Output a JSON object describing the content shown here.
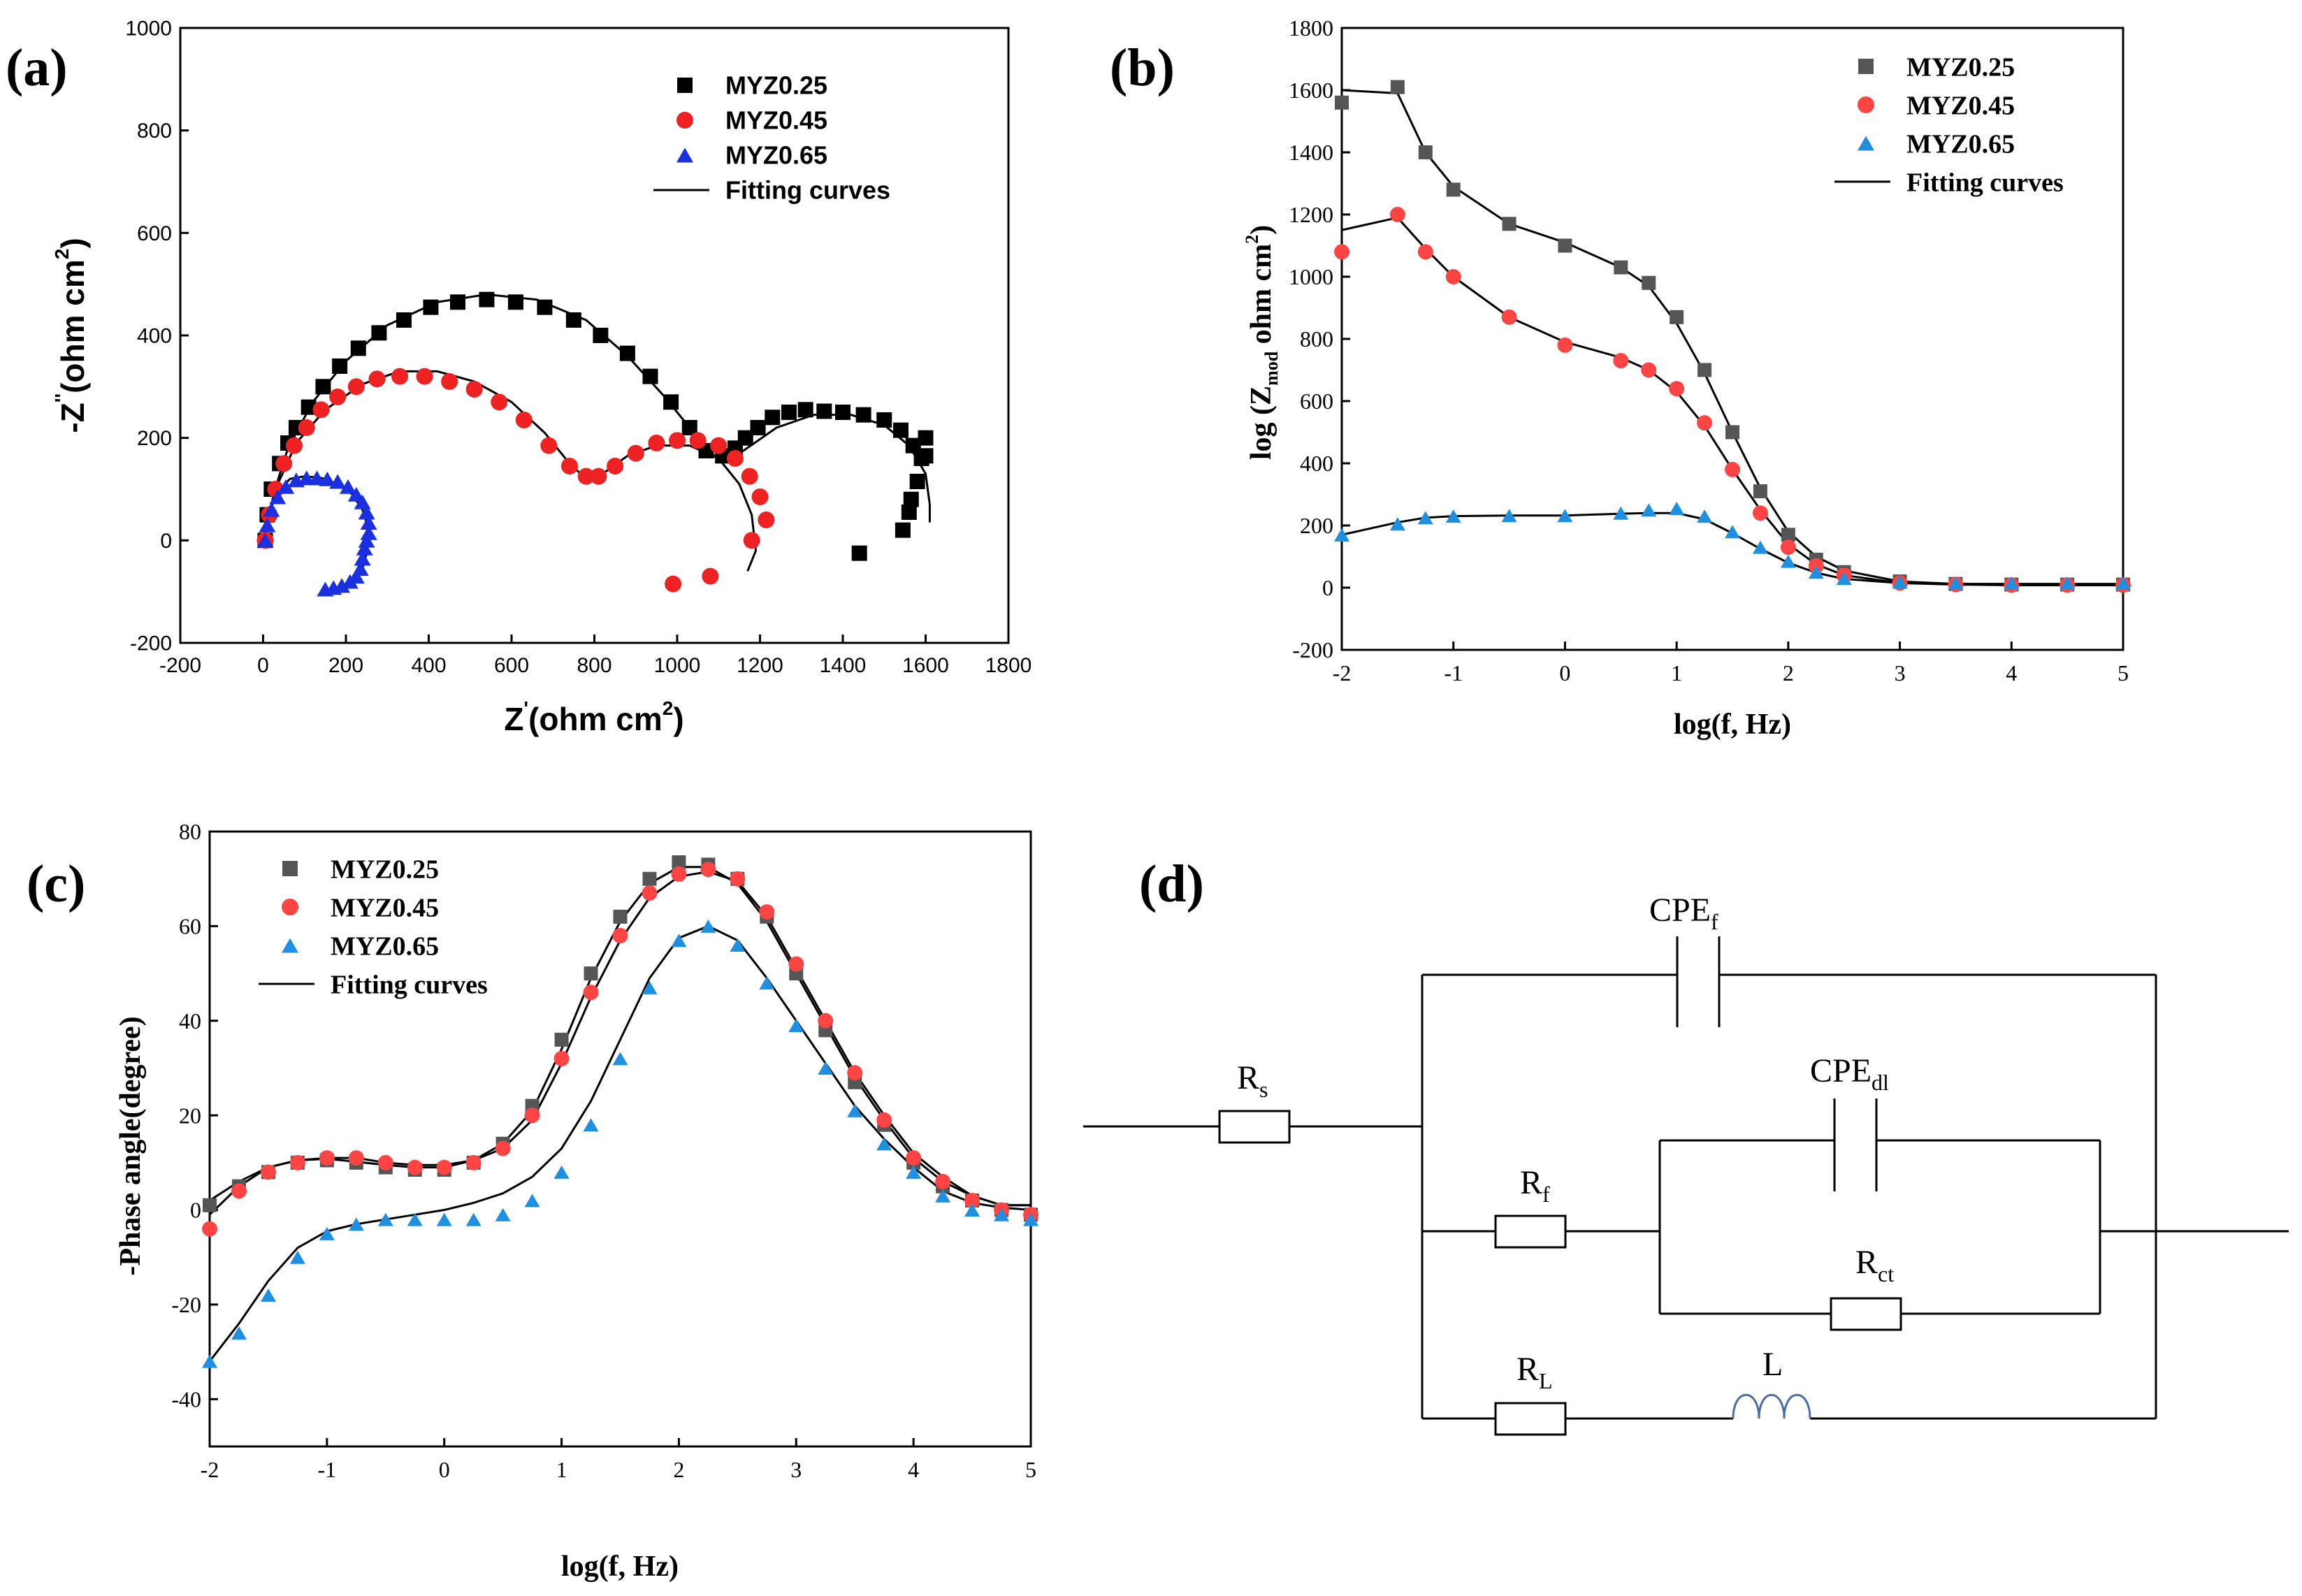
{
  "panel_labels": {
    "a": "(a)",
    "b": "(b)",
    "c": "(c)",
    "d": "(d)"
  },
  "colors": {
    "s1": "#000000",
    "s2": "#ee2222",
    "s3": "#1a2fe0",
    "s1b": "#555555",
    "s2b": "#ff4444",
    "s3b": "#1f8fe0",
    "fit": "#000000",
    "inductor": "#4a6fa5"
  },
  "chart_data": [
    {
      "panel": "a",
      "type": "scatter",
      "xlabel": "Z'(ohm cm²)",
      "ylabel": "-Z''(ohm cm²)",
      "xlim": [
        -200,
        1800
      ],
      "ylim": [
        -200,
        1000
      ],
      "xticks": [
        -200,
        0,
        200,
        400,
        600,
        800,
        1000,
        1200,
        1400,
        1600,
        1800
      ],
      "yticks": [
        -200,
        0,
        200,
        400,
        600,
        800,
        1000
      ],
      "legend_position": "top-right",
      "series": [
        {
          "name": "MYZ0.25",
          "marker": "square",
          "color": "#000000",
          "x": [
            5,
            10,
            20,
            40,
            60,
            80,
            110,
            145,
            185,
            230,
            280,
            340,
            405,
            470,
            540,
            610,
            680,
            750,
            815,
            880,
            935,
            985,
            1030,
            1070,
            1110,
            1140,
            1165,
            1195,
            1230,
            1270,
            1310,
            1355,
            1400,
            1450,
            1500,
            1540,
            1570,
            1590,
            1600,
            1600,
            1580,
            1565,
            1560,
            1545,
            1440
          ],
          "y": [
            0,
            50,
            100,
            150,
            190,
            220,
            260,
            300,
            340,
            375,
            405,
            430,
            455,
            465,
            470,
            465,
            455,
            430,
            400,
            365,
            320,
            270,
            220,
            175,
            165,
            180,
            200,
            220,
            240,
            250,
            255,
            252,
            250,
            245,
            235,
            215,
            185,
            160,
            200,
            165,
            115,
            80,
            55,
            20,
            -25
          ]
        },
        {
          "name": "MYZ0.45",
          "marker": "circle",
          "color": "#ee2222",
          "x": [
            5,
            15,
            30,
            50,
            75,
            105,
            140,
            180,
            225,
            275,
            330,
            390,
            450,
            510,
            570,
            630,
            690,
            740,
            780,
            810,
            850,
            900,
            950,
            1000,
            1050,
            1100,
            1140,
            1175,
            1200,
            1215,
            1180,
            1080,
            990
          ],
          "y": [
            0,
            50,
            100,
            150,
            185,
            220,
            255,
            280,
            300,
            315,
            320,
            320,
            310,
            295,
            270,
            235,
            185,
            145,
            125,
            125,
            145,
            170,
            190,
            195,
            195,
            185,
            160,
            125,
            85,
            40,
            0,
            -70,
            -85
          ]
        },
        {
          "name": "MYZ0.65",
          "marker": "triangle",
          "color": "#1a2fe0",
          "x": [
            5,
            10,
            20,
            35,
            55,
            80,
            105,
            130,
            155,
            180,
            205,
            225,
            240,
            250,
            255,
            255,
            250,
            245,
            240,
            235,
            225,
            210,
            190,
            170,
            150
          ],
          "y": [
            0,
            30,
            60,
            85,
            105,
            118,
            122,
            122,
            120,
            115,
            105,
            90,
            75,
            55,
            35,
            15,
            0,
            -15,
            -35,
            -55,
            -70,
            -80,
            -88,
            -92,
            -95
          ]
        },
        {
          "name": "Fitting curves",
          "line": true,
          "color": "#000000"
        }
      ],
      "fits": [
        {
          "x": [
            5,
            25,
            60,
            120,
            200,
            300,
            420,
            540,
            660,
            780,
            880,
            970,
            1040,
            1090,
            1120,
            1160,
            1240,
            1330,
            1420,
            1500,
            1560,
            1600,
            1610,
            1610
          ],
          "y": [
            0,
            90,
            180,
            270,
            350,
            420,
            465,
            480,
            470,
            430,
            360,
            280,
            210,
            165,
            155,
            175,
            220,
            245,
            245,
            225,
            185,
            130,
            70,
            35
          ]
        },
        {
          "x": [
            5,
            30,
            80,
            150,
            240,
            330,
            420,
            510,
            600,
            680,
            740,
            780,
            820,
            880,
            950,
            1030,
            1100,
            1150,
            1180,
            1190,
            1170
          ],
          "y": [
            0,
            100,
            190,
            255,
            305,
            330,
            330,
            310,
            270,
            210,
            150,
            120,
            130,
            165,
            185,
            185,
            160,
            110,
            50,
            -20,
            -60
          ]
        },
        {
          "x": [
            5,
            15,
            35,
            65,
            100,
            140,
            180,
            215,
            240,
            255,
            252,
            240,
            220,
            195,
            165,
            140
          ],
          "y": [
            0,
            55,
            95,
            120,
            125,
            122,
            110,
            90,
            60,
            20,
            -20,
            -55,
            -80,
            -92,
            -97,
            -97
          ]
        }
      ]
    },
    {
      "panel": "b",
      "type": "scatter",
      "xlabel": "log(f, Hz)",
      "ylabel": "log (Zmod ohm cm²)",
      "xlim": [
        -2,
        5
      ],
      "ylim": [
        -200,
        1800
      ],
      "xticks": [
        -2,
        -1,
        0,
        1,
        2,
        3,
        4,
        5
      ],
      "yticks": [
        -200,
        0,
        200,
        400,
        600,
        800,
        1000,
        1200,
        1400,
        1600,
        1800
      ],
      "legend_position": "top-right",
      "series": [
        {
          "name": "MYZ0.25",
          "marker": "square",
          "color": "#555555"
        },
        {
          "name": "MYZ0.45",
          "marker": "circle",
          "color": "#ff4444"
        },
        {
          "name": "MYZ0.65",
          "marker": "triangle",
          "color": "#1f8fe0"
        },
        {
          "name": "Fitting curves",
          "line": true,
          "color": "#000000"
        }
      ],
      "x": [
        -2,
        -1.5,
        -1.25,
        -1,
        -0.5,
        0,
        0.5,
        0.75,
        1,
        1.25,
        1.5,
        1.75,
        2,
        2.25,
        2.5,
        3,
        3.5,
        4,
        4.5,
        5
      ],
      "series_values": [
        [
          1560,
          1610,
          1400,
          1280,
          1170,
          1100,
          1030,
          980,
          870,
          700,
          500,
          310,
          170,
          90,
          50,
          20,
          12,
          10,
          10,
          10
        ],
        [
          1080,
          1200,
          1080,
          1000,
          870,
          780,
          730,
          700,
          640,
          530,
          380,
          240,
          130,
          70,
          40,
          15,
          10,
          8,
          8,
          8
        ],
        [
          170,
          205,
          225,
          230,
          232,
          232,
          240,
          250,
          255,
          230,
          180,
          130,
          85,
          50,
          30,
          18,
          15,
          15,
          15,
          15
        ]
      ],
      "fit_values": [
        [
          1600,
          1590,
          1400,
          1290,
          1170,
          1110,
          1030,
          970,
          850,
          690,
          500,
          320,
          180,
          100,
          55,
          20,
          12,
          10,
          10,
          10
        ],
        [
          1150,
          1190,
          1090,
          1000,
          870,
          790,
          740,
          700,
          630,
          520,
          380,
          250,
          140,
          75,
          40,
          15,
          10,
          8,
          8,
          8
        ],
        [
          170,
          210,
          225,
          230,
          232,
          232,
          238,
          240,
          240,
          220,
          175,
          125,
          80,
          48,
          28,
          15,
          12,
          12,
          12,
          12
        ]
      ]
    },
    {
      "panel": "c",
      "type": "scatter",
      "xlabel": "log(f, Hz)",
      "ylabel": "-Phase angle(degree)",
      "xlim": [
        -2,
        5
      ],
      "ylim": [
        -50,
        80
      ],
      "xticks": [
        -2,
        -1,
        0,
        1,
        2,
        3,
        4,
        5
      ],
      "yticks": [
        -40,
        -20,
        0,
        20,
        40,
        60,
        80
      ],
      "legend_position": "top-left",
      "series": [
        {
          "name": "MYZ0.25",
          "marker": "square",
          "color": "#555555"
        },
        {
          "name": "MYZ0.45",
          "marker": "circle",
          "color": "#ff4444"
        },
        {
          "name": "MYZ0.65",
          "marker": "triangle",
          "color": "#1f8fe0"
        },
        {
          "name": "Fitting curves",
          "line": true,
          "color": "#000000"
        }
      ],
      "x": [
        -2,
        -1.75,
        -1.5,
        -1.25,
        -1,
        -0.75,
        -0.5,
        -0.25,
        0,
        0.25,
        0.5,
        0.75,
        1,
        1.25,
        1.5,
        1.75,
        2,
        2.25,
        2.5,
        2.75,
        3,
        3.25,
        3.5,
        3.75,
        4,
        4.25,
        4.5,
        4.75,
        5
      ],
      "series_values": [
        [
          1,
          5,
          8,
          10,
          10.5,
          10,
          9,
          8.5,
          8.5,
          10,
          14,
          22,
          36,
          50,
          62,
          70,
          73.5,
          73,
          70,
          62,
          50,
          38,
          27,
          18,
          10,
          5,
          2,
          0,
          -1
        ],
        [
          -4,
          4,
          8,
          10,
          11,
          11,
          10,
          9,
          9,
          10,
          13,
          20,
          32,
          46,
          58,
          67,
          71,
          72,
          70,
          63,
          52,
          40,
          29,
          19,
          11,
          6,
          2,
          0,
          -1
        ],
        [
          -32,
          -26,
          -18,
          -10,
          -5,
          -3,
          -2,
          -2,
          -2,
          -2,
          -1,
          2,
          8,
          18,
          32,
          47,
          57,
          60,
          56,
          48,
          39,
          30,
          21,
          14,
          8,
          3,
          0,
          -1,
          -2
        ]
      ],
      "fit_values": [
        [
          2,
          6,
          9,
          10.5,
          10.8,
          10.2,
          9.5,
          9,
          9,
          10.5,
          14,
          21,
          34,
          49,
          61,
          69,
          72.5,
          72.5,
          69,
          61,
          50,
          39,
          28,
          19,
          11,
          6,
          3,
          1,
          1
        ],
        [
          -1,
          5,
          9,
          10.5,
          11,
          11,
          10,
          9.5,
          9.5,
          10.5,
          13,
          19,
          31,
          45,
          57,
          66,
          70.5,
          71.5,
          69.5,
          62,
          51,
          40,
          29,
          20,
          12,
          7,
          3,
          1,
          1
        ],
        [
          -32,
          -24,
          -15,
          -8,
          -4.5,
          -3,
          -2,
          -1,
          0,
          1.5,
          3.5,
          7,
          13,
          23,
          36,
          49,
          57.5,
          60,
          57,
          49,
          40,
          31,
          22,
          15,
          9,
          4,
          1.5,
          0.5,
          0
        ]
      ]
    }
  ],
  "circuit": {
    "labels": {
      "cpe_f": {
        "main": "CPE",
        "sub": "f"
      },
      "cpe_dl": {
        "main": "CPE",
        "sub": "dl"
      },
      "r_s": {
        "main": "R",
        "sub": "s"
      },
      "r_f": {
        "main": "R",
        "sub": "f"
      },
      "r_ct": {
        "main": "R",
        "sub": "ct"
      },
      "r_l": {
        "main": "R",
        "sub": "L"
      },
      "l": "L"
    }
  }
}
